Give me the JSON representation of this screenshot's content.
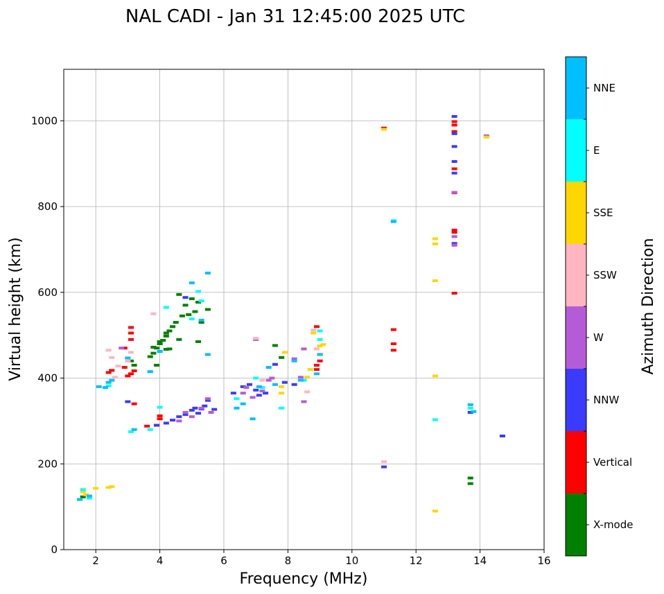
{
  "chart_data": {
    "type": "scatter",
    "title": "NAL CADI - Jan 31 12:45:00 2025 UTC",
    "xlabel": "Frequency (MHz)",
    "ylabel": "Virtual height (km)",
    "xlim": [
      1,
      16
    ],
    "ylim": [
      0,
      1120
    ],
    "xticks": [
      2,
      4,
      6,
      8,
      10,
      12,
      14,
      16
    ],
    "yticks": [
      0,
      200,
      400,
      600,
      800,
      1000
    ],
    "grid": true,
    "colorbar": {
      "title": "Azimuth Direction",
      "categories": [
        {
          "name": "X-mode",
          "color": "#008000"
        },
        {
          "name": "Vertical",
          "color": "#ff0000"
        },
        {
          "name": "NNW",
          "color": "#3b3bff"
        },
        {
          "name": "W",
          "color": "#b55bd8"
        },
        {
          "name": "SSW",
          "color": "#ffb6c1"
        },
        {
          "name": "SSE",
          "color": "#ffd700"
        },
        {
          "name": "E",
          "color": "#00ffff"
        },
        {
          "name": "NNE",
          "color": "#00bfff"
        }
      ]
    },
    "series": [
      {
        "name": "X-mode",
        "points": [
          [
            1.6,
            123
          ],
          [
            3.1,
            440
          ],
          [
            3.2,
            430
          ],
          [
            3.8,
            472
          ],
          [
            3.8,
            458
          ],
          [
            3.9,
            470
          ],
          [
            4.0,
            485
          ],
          [
            4.0,
            480
          ],
          [
            4.1,
            488
          ],
          [
            4.2,
            498
          ],
          [
            4.2,
            505
          ],
          [
            4.3,
            468
          ],
          [
            4.3,
            510
          ],
          [
            4.4,
            520
          ],
          [
            4.5,
            530
          ],
          [
            4.6,
            490
          ],
          [
            4.6,
            595
          ],
          [
            4.7,
            545
          ],
          [
            4.8,
            570
          ],
          [
            4.9,
            548
          ],
          [
            5.0,
            585
          ],
          [
            5.1,
            555
          ],
          [
            5.2,
            577
          ],
          [
            5.2,
            485
          ],
          [
            5.3,
            530
          ],
          [
            5.5,
            560
          ],
          [
            7.6,
            476
          ],
          [
            7.8,
            448
          ],
          [
            13.7,
            167
          ],
          [
            13.7,
            154
          ],
          [
            3.7,
            450
          ],
          [
            4.2,
            467
          ],
          [
            3.9,
            430
          ],
          [
            4.0,
            462
          ]
        ]
      },
      {
        "name": "Vertical",
        "points": [
          [
            2.9,
            425
          ],
          [
            2.9,
            470
          ],
          [
            3.1,
            490
          ],
          [
            3.1,
            505
          ],
          [
            3.1,
            518
          ],
          [
            3.1,
            410
          ],
          [
            3.0,
            405
          ],
          [
            3.2,
            417
          ],
          [
            3.2,
            340
          ],
          [
            3.6,
            288
          ],
          [
            3.9,
            290
          ],
          [
            4.0,
            312
          ],
          [
            4.0,
            305
          ],
          [
            8.9,
            430
          ],
          [
            8.9,
            420
          ],
          [
            8.9,
            520
          ],
          [
            9.0,
            440
          ],
          [
            9.0,
            455
          ],
          [
            11.0,
            983
          ],
          [
            11.3,
            513
          ],
          [
            11.3,
            480
          ],
          [
            11.3,
            465
          ],
          [
            13.2,
            598
          ],
          [
            13.2,
            710
          ],
          [
            13.2,
            740
          ],
          [
            13.2,
            745
          ],
          [
            13.2,
            975
          ],
          [
            13.2,
            990
          ],
          [
            13.2,
            998
          ],
          [
            13.2,
            888
          ],
          [
            13.2,
            832
          ],
          [
            2.4,
            413
          ],
          [
            2.5,
            418
          ]
        ]
      },
      {
        "name": "NNW",
        "points": [
          [
            3.0,
            345
          ],
          [
            3.9,
            290
          ],
          [
            4.2,
            295
          ],
          [
            4.4,
            302
          ],
          [
            4.6,
            310
          ],
          [
            4.8,
            315
          ],
          [
            5.0,
            325
          ],
          [
            5.1,
            330
          ],
          [
            5.2,
            318
          ],
          [
            5.3,
            328
          ],
          [
            5.4,
            335
          ],
          [
            5.5,
            348
          ],
          [
            4.8,
            588
          ],
          [
            6.6,
            380
          ],
          [
            6.8,
            385
          ],
          [
            7.0,
            372
          ],
          [
            7.1,
            360
          ],
          [
            7.3,
            365
          ],
          [
            7.6,
            432
          ],
          [
            7.9,
            390
          ],
          [
            8.2,
            385
          ],
          [
            13.2,
            1010
          ],
          [
            13.2,
            905
          ],
          [
            13.2,
            878
          ],
          [
            13.2,
            970
          ],
          [
            13.2,
            940
          ],
          [
            13.2,
            714
          ],
          [
            13.7,
            320
          ],
          [
            14.7,
            265
          ],
          [
            11.0,
            193
          ],
          [
            5.7,
            327
          ],
          [
            6.3,
            365
          ]
        ]
      },
      {
        "name": "W",
        "points": [
          [
            2.8,
            470
          ],
          [
            4.6,
            300
          ],
          [
            4.8,
            320
          ],
          [
            5.0,
            310
          ],
          [
            5.3,
            330
          ],
          [
            5.6,
            320
          ],
          [
            6.6,
            365
          ],
          [
            6.7,
            378
          ],
          [
            6.9,
            355
          ],
          [
            7.0,
            490
          ],
          [
            7.2,
            370
          ],
          [
            7.4,
            395
          ],
          [
            7.5,
            400
          ],
          [
            8.5,
            468
          ],
          [
            8.5,
            345
          ],
          [
            8.4,
            402
          ],
          [
            13.2,
            833
          ],
          [
            13.2,
            710
          ],
          [
            13.2,
            730
          ],
          [
            14.2,
            965
          ],
          [
            8.2,
            445
          ],
          [
            5.5,
            352
          ]
        ]
      },
      {
        "name": "SSW",
        "points": [
          [
            2.4,
            465
          ],
          [
            2.7,
            428
          ],
          [
            2.6,
            402
          ],
          [
            3.8,
            550
          ],
          [
            3.1,
            460
          ],
          [
            7.0,
            493
          ],
          [
            7.2,
            395
          ],
          [
            8.6,
            368
          ],
          [
            8.9,
            468
          ],
          [
            8.8,
            512
          ],
          [
            11.0,
            205
          ],
          [
            2.5,
            448
          ],
          [
            3.0,
            440
          ]
        ]
      },
      {
        "name": "SSE",
        "points": [
          [
            1.6,
            135
          ],
          [
            1.7,
            128
          ],
          [
            2.0,
            143
          ],
          [
            2.4,
            145
          ],
          [
            2.5,
            147
          ],
          [
            7.8,
            380
          ],
          [
            7.8,
            365
          ],
          [
            7.9,
            460
          ],
          [
            8.6,
            402
          ],
          [
            8.7,
            420
          ],
          [
            8.8,
            505
          ],
          [
            9.1,
            478
          ],
          [
            12.6,
            725
          ],
          [
            12.6,
            713
          ],
          [
            12.6,
            627
          ],
          [
            12.6,
            405
          ],
          [
            12.6,
            90
          ],
          [
            14.2,
            962
          ],
          [
            11.0,
            980
          ],
          [
            9.0,
            475
          ]
        ]
      },
      {
        "name": "E",
        "points": [
          [
            1.6,
            140
          ],
          [
            1.8,
            120
          ],
          [
            2.4,
            382
          ],
          [
            3.1,
            275
          ],
          [
            3.7,
            280
          ],
          [
            4.0,
            332
          ],
          [
            4.2,
            565
          ],
          [
            5.2,
            602
          ],
          [
            5.3,
            580
          ],
          [
            5.0,
            538
          ],
          [
            7.0,
            400
          ],
          [
            7.2,
            378
          ],
          [
            8.5,
            395
          ],
          [
            9.0,
            510
          ],
          [
            9.0,
            490
          ],
          [
            11.3,
            767
          ],
          [
            12.6,
            303
          ],
          [
            13.7,
            330
          ],
          [
            3.7,
            415
          ],
          [
            7.8,
            330
          ],
          [
            6.4,
            352
          ]
        ]
      },
      {
        "name": "NNE",
        "points": [
          [
            1.5,
            117
          ],
          [
            1.8,
            125
          ],
          [
            2.1,
            380
          ],
          [
            2.3,
            378
          ],
          [
            2.4,
            390
          ],
          [
            2.5,
            395
          ],
          [
            3.0,
            447
          ],
          [
            3.2,
            280
          ],
          [
            3.7,
            415
          ],
          [
            4.0,
            462
          ],
          [
            5.5,
            645
          ],
          [
            5.5,
            455
          ],
          [
            6.4,
            330
          ],
          [
            6.6,
            340
          ],
          [
            6.9,
            305
          ],
          [
            7.1,
            380
          ],
          [
            7.4,
            425
          ],
          [
            7.6,
            385
          ],
          [
            8.2,
            440
          ],
          [
            8.4,
            395
          ],
          [
            8.9,
            410
          ],
          [
            9.0,
            455
          ],
          [
            11.3,
            765
          ],
          [
            13.7,
            338
          ],
          [
            13.8,
            322
          ],
          [
            5.0,
            622
          ],
          [
            5.3,
            535
          ]
        ]
      }
    ]
  }
}
